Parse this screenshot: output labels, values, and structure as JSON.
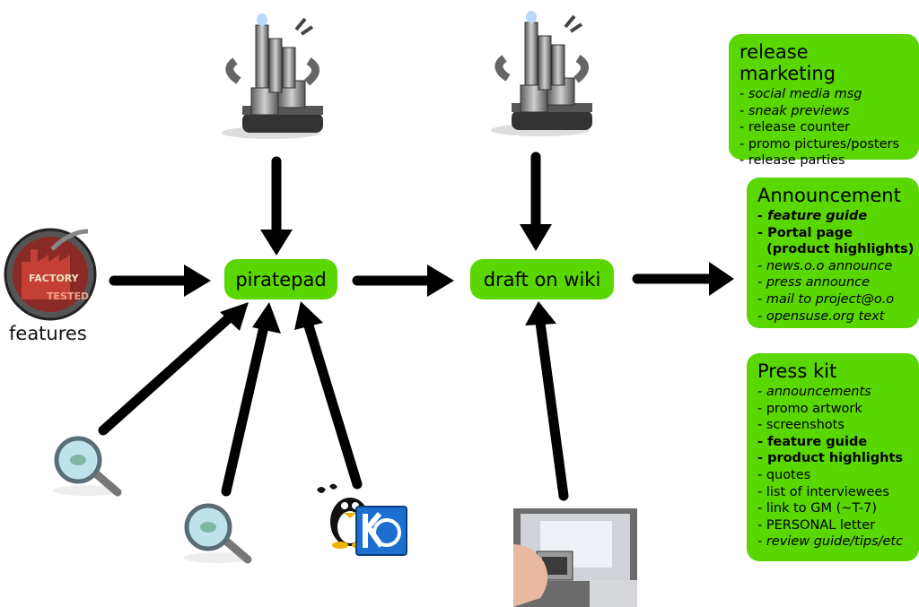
{
  "nodes": {
    "piratepad": "piratepad",
    "draft": "draft on wiki",
    "features_label": "features"
  },
  "factory_logo": {
    "line1": "FACTORY",
    "line2": "TESTED"
  },
  "panels": {
    "release_marketing": {
      "title": "release marketing",
      "items": [
        {
          "text": "- social media msg",
          "style": "italic"
        },
        {
          "text": "- sneak previews",
          "style": "italic"
        },
        {
          "text": "- release counter",
          "style": "normal"
        },
        {
          "text": "- promo pictures/posters",
          "style": "normal"
        },
        {
          "text": "- release parties",
          "style": "normal"
        }
      ]
    },
    "announcement": {
      "title": "Announcement",
      "items": [
        {
          "text": "- feature guide",
          "style": "bold-italic"
        },
        {
          "text": "- Portal page",
          "style": "bold"
        },
        {
          "text": "  (product highlights)",
          "style": "bold"
        },
        {
          "text": "- news.o.o announce",
          "style": "italic"
        },
        {
          "text": "- press announce",
          "style": "italic"
        },
        {
          "text": "- mail to project@o.o",
          "style": "italic"
        },
        {
          "text": "- opensuse.org text",
          "style": "italic"
        }
      ]
    },
    "press_kit": {
      "title": "Press kit",
      "items": [
        {
          "text": "- announcements",
          "style": "italic"
        },
        {
          "text": "- promo artwork",
          "style": "normal"
        },
        {
          "text": "- screenshots",
          "style": "normal"
        },
        {
          "text": "- feature guide",
          "style": "bold"
        },
        {
          "text": "- product highlights",
          "style": "bold"
        },
        {
          "text": "- quotes",
          "style": "normal"
        },
        {
          "text": "- list of interviewees",
          "style": "normal"
        },
        {
          "text": "- link to GM (~T-7)",
          "style": "normal"
        },
        {
          "text": "- PERSONAL letter",
          "style": "normal"
        },
        {
          "text": "- review guide/tips/etc",
          "style": "italic"
        }
      ]
    }
  },
  "colors": {
    "box": "#5ad600",
    "arrow": "#000000"
  },
  "icons": [
    "robot-factory-icon",
    "factory-tested-logo-icon",
    "magnifier-icon",
    "tux-penguin-icon",
    "kde-logo-icon",
    "camera-photo-icon"
  ]
}
